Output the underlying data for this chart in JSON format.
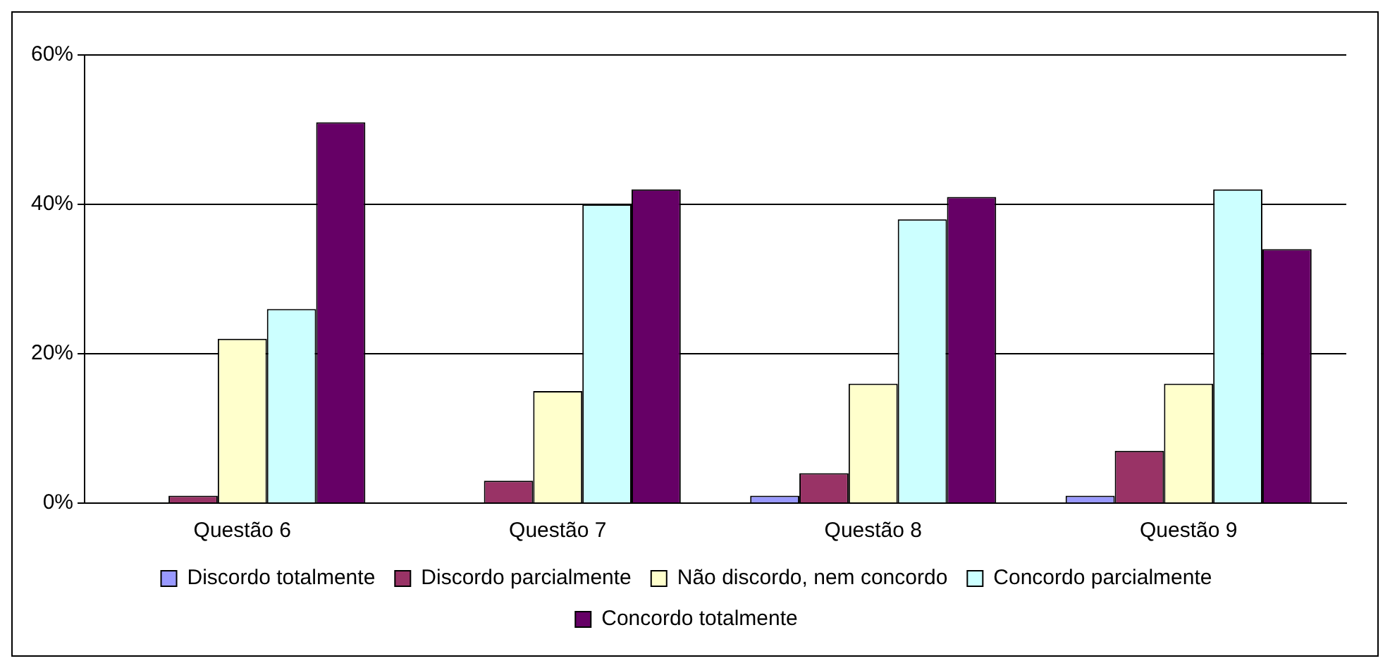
{
  "chart_data": {
    "type": "bar",
    "categories": [
      "Questão 6",
      "Questão 7",
      "Questão 8",
      "Questão 9"
    ],
    "series": [
      {
        "name": "Discordo totalmente",
        "color": "#9999ff",
        "values": [
          0,
          0,
          1,
          1
        ]
      },
      {
        "name": "Discordo parcialmente",
        "color": "#993366",
        "values": [
          1,
          3,
          4,
          7
        ]
      },
      {
        "name": "Não discordo, nem concordo",
        "color": "#ffffcc",
        "values": [
          22,
          15,
          16,
          16
        ]
      },
      {
        "name": "Concordo parcialmente",
        "color": "#ccffff",
        "values": [
          26,
          40,
          38,
          42
        ]
      },
      {
        "name": "Concordo totalmente",
        "color": "#660066",
        "values": [
          51,
          42,
          41,
          34
        ]
      }
    ],
    "ylim": [
      0,
      60
    ],
    "yticks": [
      {
        "value": 0,
        "label": "0%"
      },
      {
        "value": 20,
        "label": "20%"
      },
      {
        "value": 40,
        "label": "40%"
      },
      {
        "value": 60,
        "label": "60%"
      }
    ],
    "grid": "y",
    "legend": "bottom"
  }
}
